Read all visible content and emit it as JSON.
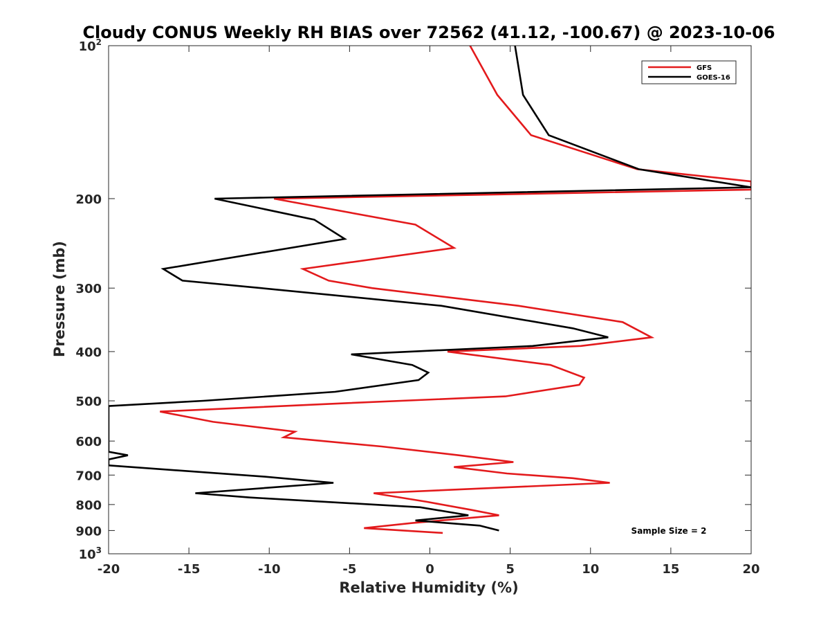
{
  "chart_data": {
    "type": "line",
    "title": "Cloudy CONUS Weekly RH BIAS over 72562 (41.12, -100.67) @ 2023-10-06",
    "xlabel": "Relative Humidity (%)",
    "ylabel": "Pressure (mb)",
    "xlim": [
      -20,
      20
    ],
    "ylim": [
      100,
      1000
    ],
    "y_scale": "log",
    "y_reversed": true,
    "grid": false,
    "legend_position": "top-right",
    "annotation": "Sample Size = 2",
    "x_ticks": [
      {
        "value": -20,
        "label": "-20"
      },
      {
        "value": -15,
        "label": "-15"
      },
      {
        "value": -10,
        "label": "-10"
      },
      {
        "value": -5,
        "label": "-5"
      },
      {
        "value": 0,
        "label": "0"
      },
      {
        "value": 5,
        "label": "5"
      },
      {
        "value": 10,
        "label": "10"
      },
      {
        "value": 15,
        "label": "15"
      },
      {
        "value": 20,
        "label": "20"
      }
    ],
    "y_ticks": [
      {
        "value": 100,
        "label": "10",
        "sup": "2"
      },
      {
        "value": 200,
        "label": "200",
        "sup": ""
      },
      {
        "value": 300,
        "label": "300",
        "sup": ""
      },
      {
        "value": 400,
        "label": "400",
        "sup": ""
      },
      {
        "value": 500,
        "label": "500",
        "sup": ""
      },
      {
        "value": 600,
        "label": "600",
        "sup": ""
      },
      {
        "value": 700,
        "label": "700",
        "sup": ""
      },
      {
        "value": 800,
        "label": "800",
        "sup": ""
      },
      {
        "value": 900,
        "label": "900",
        "sup": ""
      },
      {
        "value": 1000,
        "label": "10",
        "sup": "3"
      }
    ],
    "series": [
      {
        "name": "GFS",
        "color": "#e31a1c",
        "points": [
          [
            2.5,
            100
          ],
          [
            4.2,
            125
          ],
          [
            6.3,
            150
          ],
          [
            12.9,
            175
          ],
          [
            20.0,
            185
          ],
          [
            20.0,
            192
          ],
          [
            -9.7,
            200
          ],
          [
            -0.9,
            225
          ],
          [
            1.5,
            250
          ],
          [
            -7.9,
            275
          ],
          [
            -6.3,
            290
          ],
          [
            -3.6,
            300
          ],
          [
            5.5,
            325
          ],
          [
            12.0,
            350
          ],
          [
            13.8,
            375
          ],
          [
            9.4,
            390
          ],
          [
            1.1,
            400
          ],
          [
            7.5,
            425
          ],
          [
            9.6,
            450
          ],
          [
            9.3,
            465
          ],
          [
            4.7,
            490
          ],
          [
            -5.0,
            505
          ],
          [
            -16.8,
            525
          ],
          [
            -13.5,
            550
          ],
          [
            -8.4,
            575
          ],
          [
            -9.1,
            590
          ],
          [
            -3.0,
            615
          ],
          [
            1.8,
            640
          ],
          [
            5.2,
            660
          ],
          [
            1.5,
            675
          ],
          [
            4.8,
            695
          ],
          [
            8.9,
            710
          ],
          [
            11.2,
            725
          ],
          [
            -3.5,
            760
          ],
          [
            -0.2,
            790
          ],
          [
            2.6,
            820
          ],
          [
            4.3,
            840
          ],
          [
            -1.1,
            870
          ],
          [
            -4.1,
            890
          ],
          [
            0.8,
            910
          ]
        ]
      },
      {
        "name": "GOES-16",
        "color": "#000000",
        "points": [
          [
            5.3,
            100
          ],
          [
            5.8,
            125
          ],
          [
            7.4,
            150
          ],
          [
            13.0,
            175
          ],
          [
            20.0,
            190
          ],
          [
            -13.4,
            200
          ],
          [
            -7.2,
            220
          ],
          [
            -5.3,
            240
          ],
          [
            -16.6,
            275
          ],
          [
            -15.4,
            290
          ],
          [
            -10.5,
            300
          ],
          [
            0.7,
            325
          ],
          [
            8.9,
            360
          ],
          [
            11.1,
            375
          ],
          [
            6.4,
            390
          ],
          [
            -4.9,
            405
          ],
          [
            -1.1,
            425
          ],
          [
            -0.1,
            440
          ],
          [
            -0.7,
            455
          ],
          [
            -5.9,
            480
          ],
          [
            -14.1,
            500
          ],
          [
            -20.0,
            512
          ],
          [
            -20.0,
            630
          ],
          [
            -18.8,
            640
          ],
          [
            -20.0,
            652
          ],
          [
            -20.0,
            670
          ],
          [
            -10.3,
            705
          ],
          [
            -6.0,
            725
          ],
          [
            -14.6,
            760
          ],
          [
            -11.2,
            775
          ],
          [
            -0.6,
            810
          ],
          [
            2.4,
            840
          ],
          [
            -0.9,
            860
          ],
          [
            3.1,
            880
          ],
          [
            4.3,
            900
          ]
        ]
      }
    ]
  }
}
